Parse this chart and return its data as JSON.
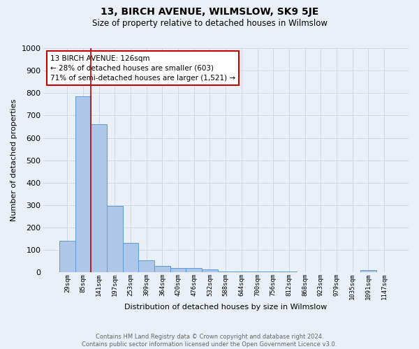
{
  "title": "13, BIRCH AVENUE, WILMSLOW, SK9 5JE",
  "subtitle": "Size of property relative to detached houses in Wilmslow",
  "xlabel": "Distribution of detached houses by size in Wilmslow",
  "ylabel": "Number of detached properties",
  "footer_line1": "Contains HM Land Registry data © Crown copyright and database right 2024.",
  "footer_line2": "Contains public sector information licensed under the Open Government Licence v3.0.",
  "bar_labels": [
    "29sqm",
    "85sqm",
    "141sqm",
    "197sqm",
    "253sqm",
    "309sqm",
    "364sqm",
    "420sqm",
    "476sqm",
    "532sqm",
    "588sqm",
    "644sqm",
    "700sqm",
    "756sqm",
    "812sqm",
    "868sqm",
    "923sqm",
    "979sqm",
    "1035sqm",
    "1091sqm",
    "1147sqm"
  ],
  "bar_values": [
    140,
    785,
    660,
    298,
    133,
    53,
    29,
    21,
    20,
    13,
    5,
    5,
    5,
    6,
    5,
    1,
    0,
    0,
    0,
    12,
    0
  ],
  "bar_color": "#aec6e8",
  "bar_edge_color": "#5b9bd5",
  "vline_x_idx": 2,
  "vline_color": "#c00000",
  "annotation_text": "13 BIRCH AVENUE: 126sqm\n← 28% of detached houses are smaller (603)\n71% of semi-detached houses are larger (1,521) →",
  "annotation_box_color": "#c00000",
  "ylim": [
    0,
    1000
  ],
  "yticks": [
    0,
    100,
    200,
    300,
    400,
    500,
    600,
    700,
    800,
    900,
    1000
  ],
  "grid_color": "#d0d8e8",
  "bg_color": "#eaf0f8",
  "figsize": [
    6.0,
    5.0
  ],
  "dpi": 100
}
